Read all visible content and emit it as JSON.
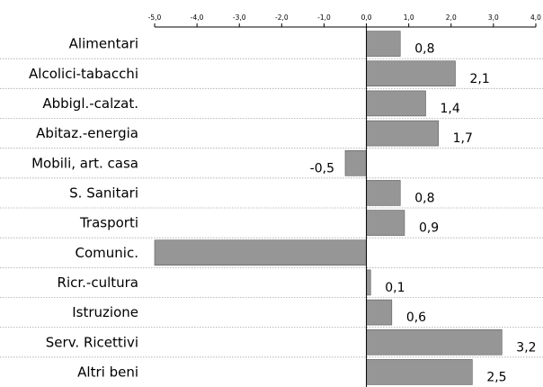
{
  "chart_data": {
    "type": "bar",
    "orientation": "horizontal",
    "categories": [
      "Alimentari",
      "Alcolici-tabacchi",
      "Abbigl.-calzat.",
      "Abitaz.-energia",
      "Mobili, art. casa",
      "S. Sanitari",
      "Trasporti",
      "Comunic.",
      "Ricr.-cultura",
      "Istruzione",
      "Serv. Ricettivi",
      "Altri beni"
    ],
    "values": [
      0.8,
      2.1,
      1.4,
      1.7,
      -0.5,
      0.8,
      0.9,
      -5.0,
      0.1,
      0.6,
      3.2,
      2.5
    ],
    "value_labels": [
      "0,8",
      "2,1",
      "1,4",
      "1,7",
      "-0,5",
      "0,8",
      "0,9",
      "",
      "0,1",
      "0,6",
      "3,2",
      "2,5"
    ],
    "xticks": [
      -5,
      -4,
      -3,
      -2,
      -1,
      0,
      1,
      2,
      3,
      4
    ],
    "xtick_labels": [
      "-5,0",
      "-4,0",
      "-3,0",
      "-2,0",
      "-1,0",
      "0,0",
      "1,0",
      "2,0",
      "3,0",
      "4,0"
    ],
    "xlim": [
      -5,
      4
    ],
    "bar_color": "#969696",
    "axis_position": "top",
    "grid": false
  }
}
